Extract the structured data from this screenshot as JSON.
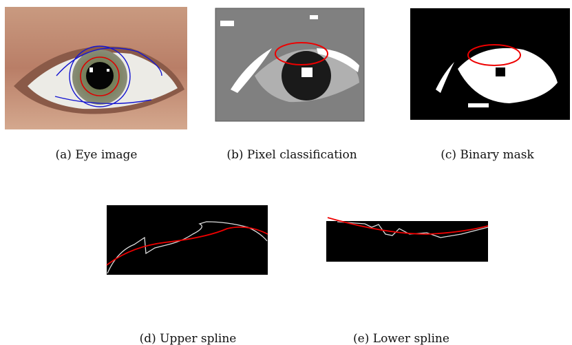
{
  "figure": {
    "subfigures": [
      {
        "caption": "(a) Eye image"
      },
      {
        "caption": "(b) Pixel classification"
      },
      {
        "caption": "(c) Binary mask"
      },
      {
        "caption": "(d) Upper spline"
      },
      {
        "caption": "(e) Lower spline"
      }
    ]
  }
}
